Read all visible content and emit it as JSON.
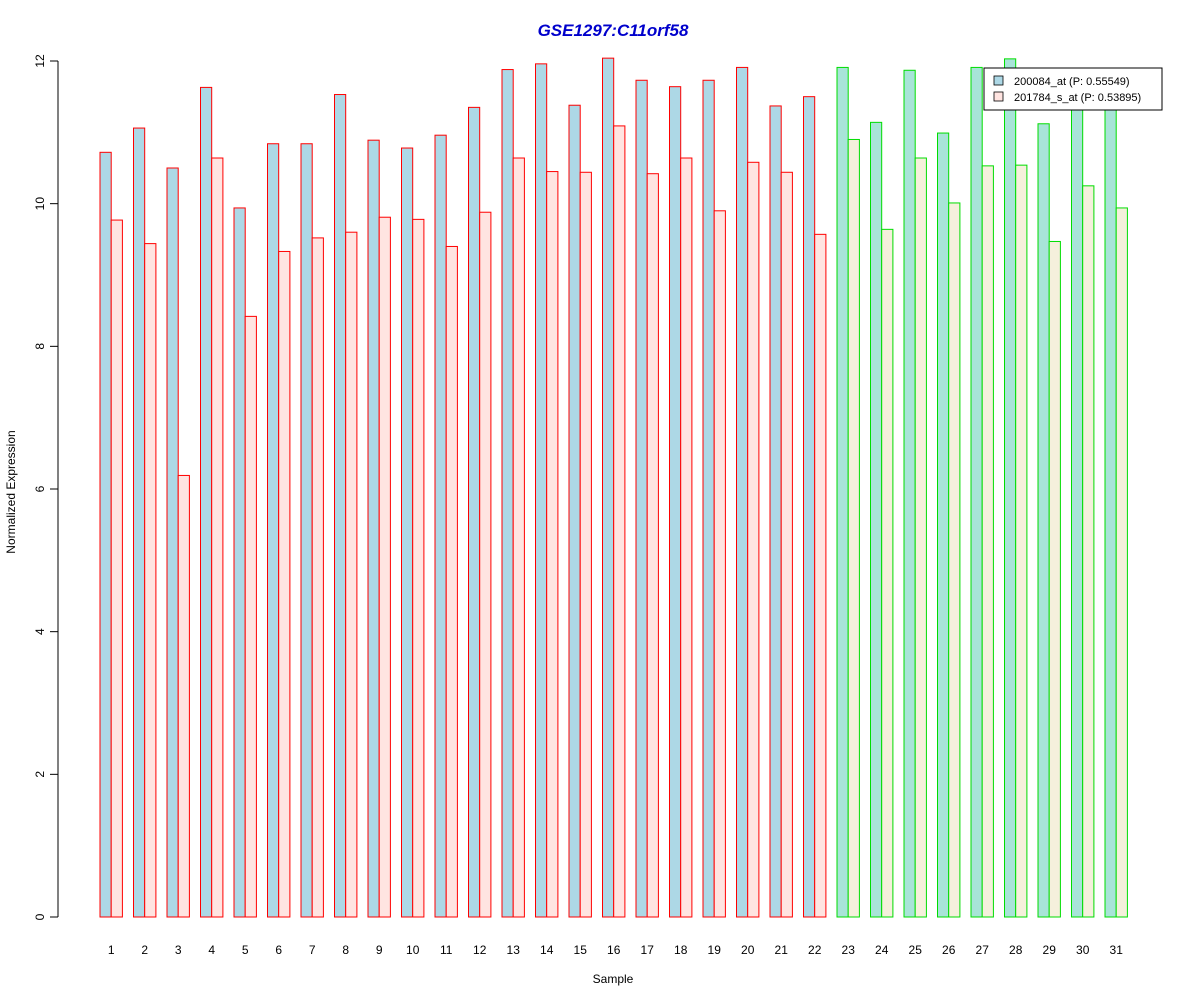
{
  "chart_data": {
    "type": "bar",
    "title": "GSE1297:C11orf58",
    "xlabel": "Sample",
    "ylabel": "Normalized Expression",
    "ylim": [
      0,
      12
    ],
    "yticks": [
      "0",
      "2",
      "4",
      "6",
      "8",
      "10",
      "12"
    ],
    "grid": false,
    "legend_position": "top-right",
    "categories": [
      "1",
      "2",
      "3",
      "4",
      "5",
      "6",
      "7",
      "8",
      "9",
      "10",
      "11",
      "12",
      "13",
      "14",
      "15",
      "16",
      "17",
      "18",
      "19",
      "20",
      "21",
      "22",
      "23",
      "24",
      "25",
      "26",
      "27",
      "28",
      "29",
      "30",
      "31"
    ],
    "groups": [
      {
        "samples": [
          1,
          22
        ],
        "border_color": "#ff0000"
      },
      {
        "samples": [
          23,
          31
        ],
        "border_color": "#00dd00"
      }
    ],
    "series": [
      {
        "name": "200084_at (P: 0.55549)",
        "fill_group1": "#add8e6",
        "fill_group2": "#a8e4d8",
        "values": [
          10.72,
          11.06,
          10.5,
          11.63,
          9.94,
          10.84,
          10.84,
          11.53,
          10.89,
          10.78,
          10.96,
          11.35,
          11.88,
          11.96,
          11.38,
          12.04,
          11.73,
          11.64,
          11.73,
          11.91,
          11.37,
          11.5,
          11.91,
          11.14,
          11.87,
          10.99,
          11.91,
          12.03,
          11.12,
          11.42,
          11.43
        ]
      },
      {
        "name": "201784_s_at (P: 0.53895)",
        "fill_group1": "#ffe4e1",
        "fill_group2": "#f5f0dc",
        "values": [
          9.77,
          9.44,
          6.19,
          10.64,
          8.42,
          9.33,
          9.52,
          9.6,
          9.81,
          9.78,
          9.4,
          9.88,
          10.64,
          10.45,
          10.44,
          11.09,
          10.42,
          10.64,
          9.9,
          10.58,
          10.44,
          9.57,
          10.9,
          9.64,
          10.64,
          10.01,
          10.53,
          10.54,
          9.47,
          10.25,
          9.94
        ]
      }
    ]
  }
}
